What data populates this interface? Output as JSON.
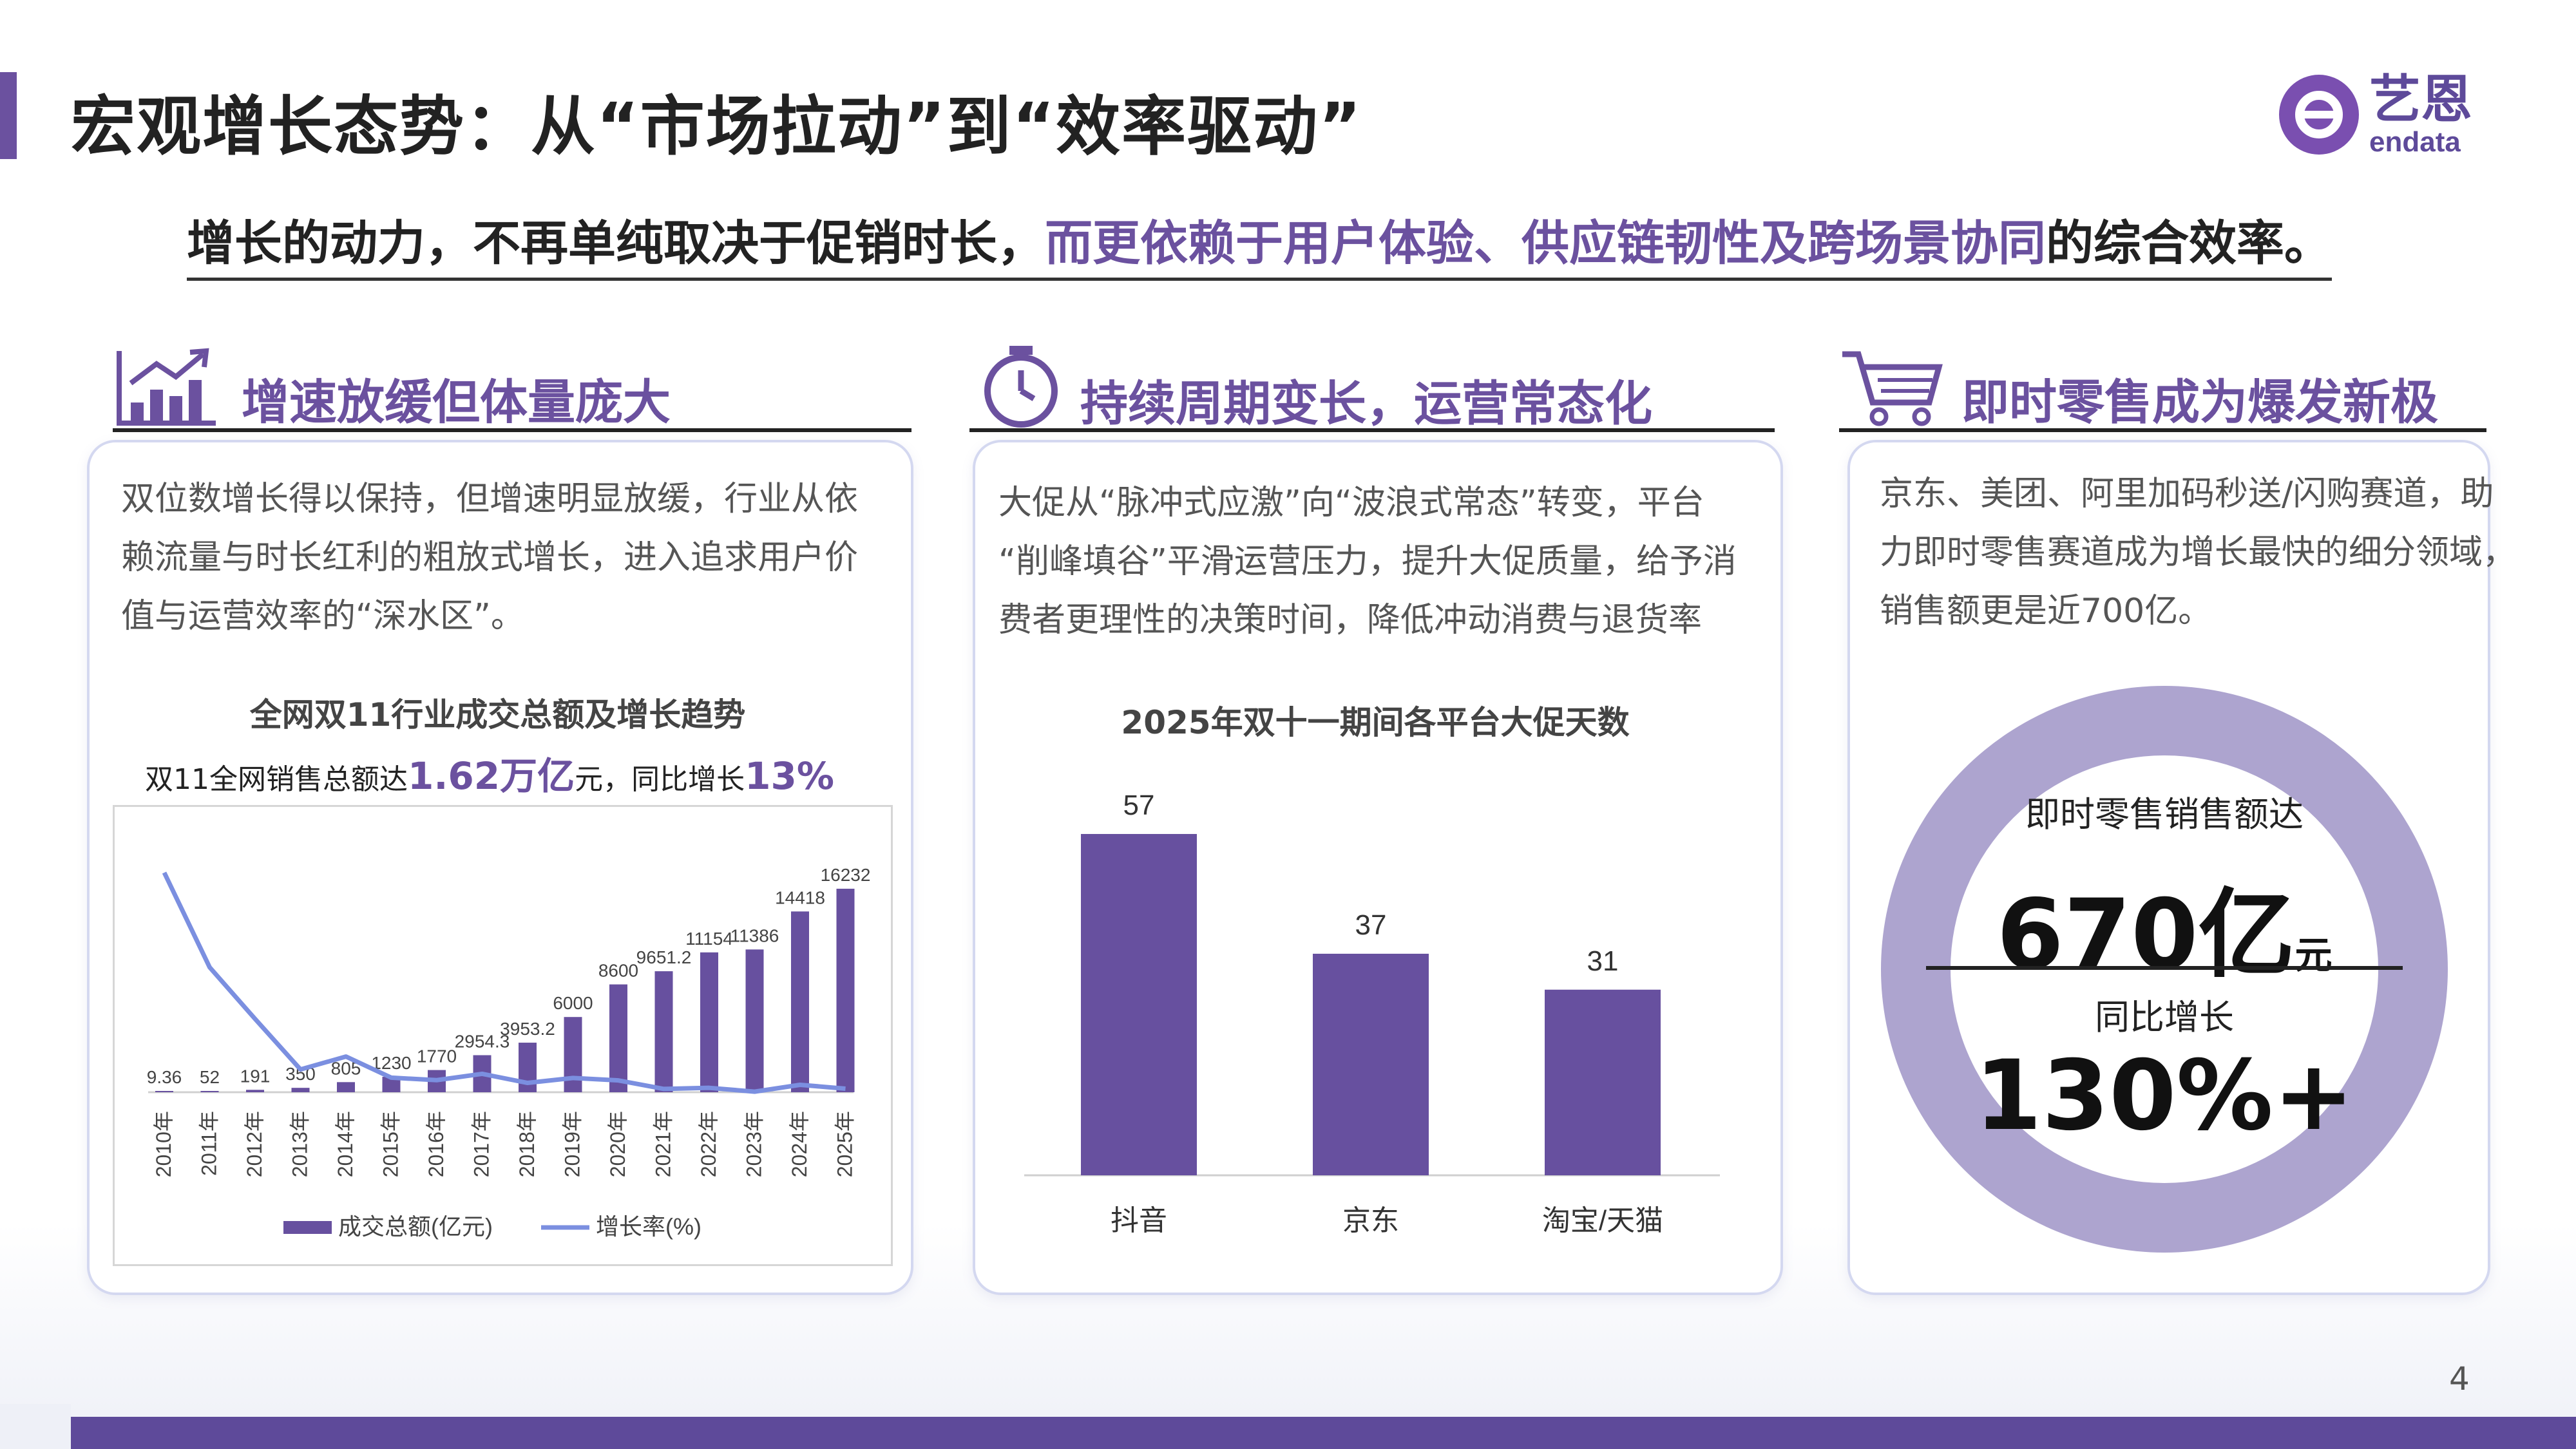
{
  "header": {
    "title": "宏观增长态势：从“市场拉动”到“效率驱动”",
    "logo_text": "艺恩",
    "logo_sub": "endata"
  },
  "subtitle": {
    "part1": "增长的动力，不再单纯取决于促销时长，",
    "part2": "而更依赖于用户体验、供应链韧性及跨场景协同",
    "part3": "的综合效率。"
  },
  "sections": [
    {
      "heading": "增速放缓但体量庞大",
      "icon": "bar-chart-icon",
      "lines": [
        "双位数增长得以保持，但增速明显放缓，行业从依",
        "赖流量与时长红利的粗放式增长，进入追求用户价",
        "值与运营效率的“深水区”。"
      ]
    },
    {
      "heading": "持续周期变长，运营常态化",
      "icon": "stopwatch-icon",
      "lines": [
        "大促从“脉冲式应激”向“波浪式常态”转变，平台",
        "“削峰填谷”平滑运营压力，提升大促质量，给予消",
        "费者更理性的决策时间，降低冲动消费与退货率"
      ]
    },
    {
      "heading": "即时零售成为爆发新极",
      "icon": "shopping-cart-icon",
      "lines": [
        "京东、美团、阿里加码秒送/闪购赛道，助",
        "力即时零售赛道成为增长最快的细分领域，",
        "销售额更是近700亿。"
      ]
    }
  ],
  "chart1_sub": {
    "prefix": "双11全网销售总额达",
    "amount": "1.62万亿",
    "mid": "元，同比增长",
    "rate": "13%"
  },
  "ring": {
    "label1": "即时零售销售额达",
    "value1": "670亿",
    "unit1": "元",
    "label2": "同比增长",
    "value2": "130%+",
    "color": "#ada4cf"
  },
  "page_number": "4",
  "colors": {
    "accent": "#6b519f",
    "line": "#7b8fe0",
    "bar": "#67509f"
  },
  "chart_data": [
    {
      "type": "bar",
      "title": "全网双11行业成交总额及增长趋势",
      "categories": [
        "2010年",
        "2011年",
        "2012年",
        "2013年",
        "2014年",
        "2015年",
        "2016年",
        "2017年",
        "2018年",
        "2019年",
        "2020年",
        "2021年",
        "2022年",
        "2023年",
        "2024年",
        "2025年"
      ],
      "series": [
        {
          "name": "成交总额(亿元)",
          "type": "bar",
          "values": [
            9.36,
            52,
            191,
            350,
            805,
            1230,
            1770,
            2954.3,
            3953.2,
            6000,
            8600,
            9651.2,
            11154,
            11386,
            14418,
            16232
          ]
        },
        {
          "name": "增长率(%)",
          "type": "line",
          "values": [
            800,
            455,
            267,
            83,
            130,
            53,
            44,
            67,
            34,
            52,
            43,
            12,
            16,
            2,
            27,
            13
          ]
        }
      ],
      "data_labels": [
        "9.36",
        "52",
        "191",
        "350",
        "805",
        "1230",
        "1770",
        "2954.3",
        "3953.2",
        "6000",
        "8600",
        "9651.2",
        "11154",
        "11386",
        "14418",
        "16232"
      ],
      "legend": "bottom"
    },
    {
      "type": "bar",
      "title": "2025年双十一期间各平台大促天数",
      "categories": [
        "抖音",
        "京东",
        "淘宝/天猫"
      ],
      "values": [
        57,
        37,
        31
      ]
    }
  ]
}
